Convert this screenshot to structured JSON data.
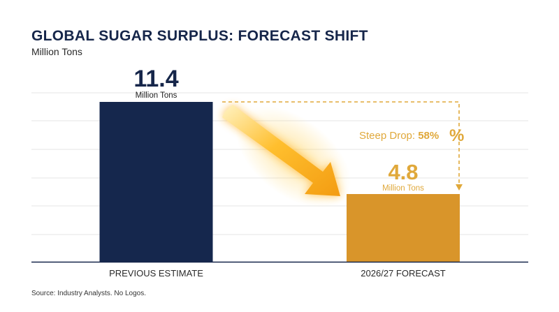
{
  "title": "GLOBAL SUGAR SURPLUS: FORECAST SHIFT",
  "subtitle": "Million Tons",
  "source": "Source: Industry Analysts. No Logos.",
  "colors": {
    "title": "#16264a",
    "previous_bar": "#15274d",
    "forecast_bar": "#d9952a",
    "accent": "#e0a83a",
    "gridline": "#e6e6e6",
    "baseline": "#16264a"
  },
  "chart_data": {
    "type": "bar",
    "title": "GLOBAL SUGAR SURPLUS: FORECAST SHIFT",
    "subtitle": "Million Tons",
    "xlabel": "",
    "ylabel": "",
    "categories": [
      "PREVIOUS ESTIMATE",
      "2026/27 FORECAST"
    ],
    "values": [
      11.4,
      4.8
    ],
    "value_labels": [
      "11.4",
      "4.8"
    ],
    "unit_label": "Million Tons",
    "ylim": [
      0,
      12
    ],
    "grid": true,
    "legend": "none",
    "annotation": {
      "prefix": "Steep Drop: ",
      "value": "58%",
      "symbol": "%",
      "from_category": "PREVIOUS ESTIMATE",
      "to_category": "2026/27 FORECAST"
    }
  }
}
